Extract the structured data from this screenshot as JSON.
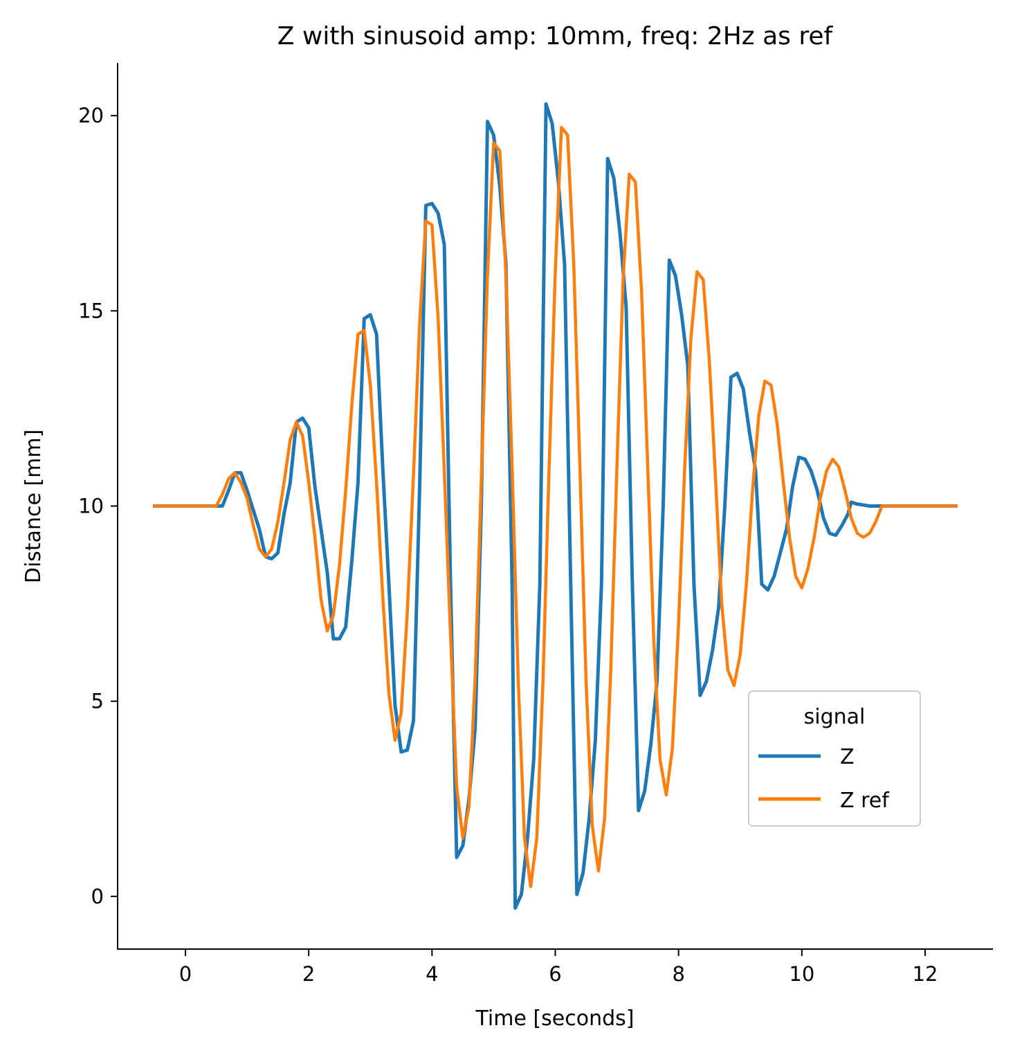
{
  "chart_data": {
    "type": "line",
    "title": "Z with sinusoid amp: 10mm, freq: 2Hz as ref",
    "xlabel": "Time [seconds]",
    "ylabel": "Distance [mm]",
    "xlim": [
      -1.1,
      13.1
    ],
    "ylim": [
      -1.35,
      21.35
    ],
    "xticks": [
      0,
      2,
      4,
      6,
      8,
      10,
      12
    ],
    "yticks": [
      0,
      5,
      10,
      15,
      20
    ],
    "xtick_labels": [
      "0",
      "2",
      "4",
      "6",
      "8",
      "10",
      "12"
    ],
    "ytick_labels": [
      "0",
      "5",
      "10",
      "15",
      "20"
    ],
    "grid": false,
    "legend": {
      "title": "signal",
      "placement": "lower-right"
    },
    "series": [
      {
        "name": "Z",
        "color": "#1f77b4",
        "points": [
          [
            -0.5,
            10
          ],
          [
            0.3,
            10
          ],
          [
            0.6,
            10.0
          ],
          [
            0.7,
            10.4
          ],
          [
            0.8,
            10.85
          ],
          [
            0.9,
            10.85
          ],
          [
            1.0,
            10.4
          ],
          [
            1.1,
            9.9
          ],
          [
            1.2,
            9.4
          ],
          [
            1.3,
            8.7
          ],
          [
            1.4,
            8.65
          ],
          [
            1.5,
            8.8
          ],
          [
            1.6,
            9.8
          ],
          [
            1.7,
            10.6
          ],
          [
            1.8,
            12.15
          ],
          [
            1.9,
            12.25
          ],
          [
            2.0,
            12.0
          ],
          [
            2.1,
            10.5
          ],
          [
            2.3,
            8.3
          ],
          [
            2.4,
            6.6
          ],
          [
            2.5,
            6.6
          ],
          [
            2.6,
            6.9
          ],
          [
            2.7,
            8.6
          ],
          [
            2.8,
            10.6
          ],
          [
            2.9,
            14.8
          ],
          [
            3.0,
            14.9
          ],
          [
            3.1,
            14.4
          ],
          [
            3.2,
            11.0
          ],
          [
            3.3,
            8.0
          ],
          [
            3.4,
            4.9
          ],
          [
            3.5,
            3.7
          ],
          [
            3.6,
            3.75
          ],
          [
            3.7,
            4.5
          ],
          [
            3.8,
            10.5
          ],
          [
            3.9,
            17.7
          ],
          [
            4.0,
            17.75
          ],
          [
            4.1,
            17.5
          ],
          [
            4.2,
            16.7
          ],
          [
            4.3,
            8.0
          ],
          [
            4.4,
            1.0
          ],
          [
            4.5,
            1.3
          ],
          [
            4.6,
            2.5
          ],
          [
            4.7,
            4.3
          ],
          [
            4.8,
            10.0
          ],
          [
            4.9,
            19.85
          ],
          [
            5.0,
            19.5
          ],
          [
            5.1,
            18.2
          ],
          [
            5.2,
            16.2
          ],
          [
            5.3,
            8.0
          ],
          [
            5.35,
            -0.3
          ],
          [
            5.45,
            0.05
          ],
          [
            5.55,
            1.5
          ],
          [
            5.65,
            3.5
          ],
          [
            5.75,
            8.0
          ],
          [
            5.85,
            20.3
          ],
          [
            5.95,
            19.8
          ],
          [
            6.05,
            18.3
          ],
          [
            6.15,
            16.2
          ],
          [
            6.25,
            8.0
          ],
          [
            6.35,
            0.05
          ],
          [
            6.45,
            0.6
          ],
          [
            6.55,
            2.0
          ],
          [
            6.65,
            4.0
          ],
          [
            6.75,
            8.0
          ],
          [
            6.85,
            18.9
          ],
          [
            6.95,
            18.4
          ],
          [
            7.05,
            17.0
          ],
          [
            7.15,
            15.1
          ],
          [
            7.25,
            8.0
          ],
          [
            7.35,
            2.2
          ],
          [
            7.45,
            2.7
          ],
          [
            7.55,
            3.9
          ],
          [
            7.65,
            5.5
          ],
          [
            7.75,
            10.0
          ],
          [
            7.85,
            16.3
          ],
          [
            7.95,
            15.9
          ],
          [
            8.05,
            14.9
          ],
          [
            8.15,
            13.6
          ],
          [
            8.25,
            8.0
          ],
          [
            8.35,
            5.15
          ],
          [
            8.45,
            5.5
          ],
          [
            8.55,
            6.3
          ],
          [
            8.65,
            7.4
          ],
          [
            8.75,
            10.0
          ],
          [
            8.85,
            13.3
          ],
          [
            8.95,
            13.4
          ],
          [
            9.05,
            13.0
          ],
          [
            9.15,
            11.9
          ],
          [
            9.25,
            10.9
          ],
          [
            9.35,
            8.0
          ],
          [
            9.45,
            7.85
          ],
          [
            9.55,
            8.2
          ],
          [
            9.65,
            8.8
          ],
          [
            9.75,
            9.4
          ],
          [
            9.85,
            10.5
          ],
          [
            9.95,
            11.25
          ],
          [
            10.05,
            11.2
          ],
          [
            10.15,
            10.9
          ],
          [
            10.25,
            10.4
          ],
          [
            10.35,
            9.7
          ],
          [
            10.45,
            9.3
          ],
          [
            10.55,
            9.25
          ],
          [
            10.65,
            9.5
          ],
          [
            10.75,
            9.8
          ],
          [
            10.8,
            10.1
          ],
          [
            10.9,
            10.05
          ],
          [
            11.1,
            10.0
          ],
          [
            12.5,
            10.0
          ]
        ]
      },
      {
        "name": "Z ref",
        "color": "#ff7f0e",
        "points": [
          [
            -0.5,
            10
          ],
          [
            0.5,
            10
          ],
          [
            0.6,
            10.3
          ],
          [
            0.7,
            10.7
          ],
          [
            0.8,
            10.85
          ],
          [
            0.9,
            10.6
          ],
          [
            1.0,
            10.2
          ],
          [
            1.1,
            9.5
          ],
          [
            1.2,
            8.9
          ],
          [
            1.3,
            8.7
          ],
          [
            1.4,
            8.9
          ],
          [
            1.5,
            9.6
          ],
          [
            1.6,
            10.6
          ],
          [
            1.7,
            11.7
          ],
          [
            1.8,
            12.15
          ],
          [
            1.9,
            11.8
          ],
          [
            2.0,
            10.6
          ],
          [
            2.1,
            9.2
          ],
          [
            2.2,
            7.6
          ],
          [
            2.3,
            6.8
          ],
          [
            2.4,
            7.2
          ],
          [
            2.5,
            8.5
          ],
          [
            2.6,
            10.4
          ],
          [
            2.7,
            12.6
          ],
          [
            2.8,
            14.4
          ],
          [
            2.9,
            14.5
          ],
          [
            3.0,
            13.1
          ],
          [
            3.1,
            10.6
          ],
          [
            3.2,
            7.7
          ],
          [
            3.3,
            5.2
          ],
          [
            3.4,
            4.0
          ],
          [
            3.5,
            4.7
          ],
          [
            3.6,
            7.3
          ],
          [
            3.7,
            10.8
          ],
          [
            3.8,
            14.7
          ],
          [
            3.9,
            17.3
          ],
          [
            4.0,
            17.2
          ],
          [
            4.1,
            14.8
          ],
          [
            4.2,
            10.9
          ],
          [
            4.3,
            6.7
          ],
          [
            4.4,
            2.8
          ],
          [
            4.5,
            1.5
          ],
          [
            4.6,
            2.3
          ],
          [
            4.7,
            5.6
          ],
          [
            4.8,
            10.7
          ],
          [
            4.9,
            15.9
          ],
          [
            5.0,
            19.3
          ],
          [
            5.1,
            19.1
          ],
          [
            5.2,
            15.9
          ],
          [
            5.3,
            11.0
          ],
          [
            5.4,
            5.5
          ],
          [
            5.5,
            1.5
          ],
          [
            5.6,
            0.25
          ],
          [
            5.7,
            1.5
          ],
          [
            5.8,
            5.5
          ],
          [
            5.9,
            11.0
          ],
          [
            6.0,
            16.0
          ],
          [
            6.1,
            19.7
          ],
          [
            6.2,
            19.5
          ],
          [
            6.3,
            16.2
          ],
          [
            6.4,
            11.0
          ],
          [
            6.5,
            5.5
          ],
          [
            6.6,
            1.8
          ],
          [
            6.7,
            0.65
          ],
          [
            6.8,
            2.0
          ],
          [
            6.9,
            5.8
          ],
          [
            7.0,
            11.0
          ],
          [
            7.1,
            15.8
          ],
          [
            7.2,
            18.5
          ],
          [
            7.3,
            18.3
          ],
          [
            7.4,
            15.5
          ],
          [
            7.5,
            11.0
          ],
          [
            7.6,
            6.5
          ],
          [
            7.7,
            3.5
          ],
          [
            7.8,
            2.6
          ],
          [
            7.9,
            3.8
          ],
          [
            8.0,
            7.0
          ],
          [
            8.1,
            11.0
          ],
          [
            8.2,
            14.3
          ],
          [
            8.3,
            16.0
          ],
          [
            8.4,
            15.8
          ],
          [
            8.5,
            13.7
          ],
          [
            8.6,
            10.7
          ],
          [
            8.7,
            7.5
          ],
          [
            8.8,
            5.8
          ],
          [
            8.9,
            5.4
          ],
          [
            9.0,
            6.2
          ],
          [
            9.1,
            8.0
          ],
          [
            9.2,
            10.4
          ],
          [
            9.3,
            12.3
          ],
          [
            9.4,
            13.2
          ],
          [
            9.5,
            13.1
          ],
          [
            9.6,
            12.1
          ],
          [
            9.7,
            10.6
          ],
          [
            9.8,
            9.2
          ],
          [
            9.9,
            8.2
          ],
          [
            10.0,
            7.9
          ],
          [
            10.1,
            8.4
          ],
          [
            10.2,
            9.2
          ],
          [
            10.3,
            10.2
          ],
          [
            10.4,
            10.9
          ],
          [
            10.5,
            11.2
          ],
          [
            10.6,
            11.0
          ],
          [
            10.7,
            10.4
          ],
          [
            10.8,
            9.7
          ],
          [
            10.9,
            9.3
          ],
          [
            11.0,
            9.2
          ],
          [
            11.1,
            9.3
          ],
          [
            11.2,
            9.6
          ],
          [
            11.3,
            10.0
          ],
          [
            11.4,
            10.0
          ],
          [
            12.5,
            10.0
          ]
        ]
      }
    ]
  }
}
